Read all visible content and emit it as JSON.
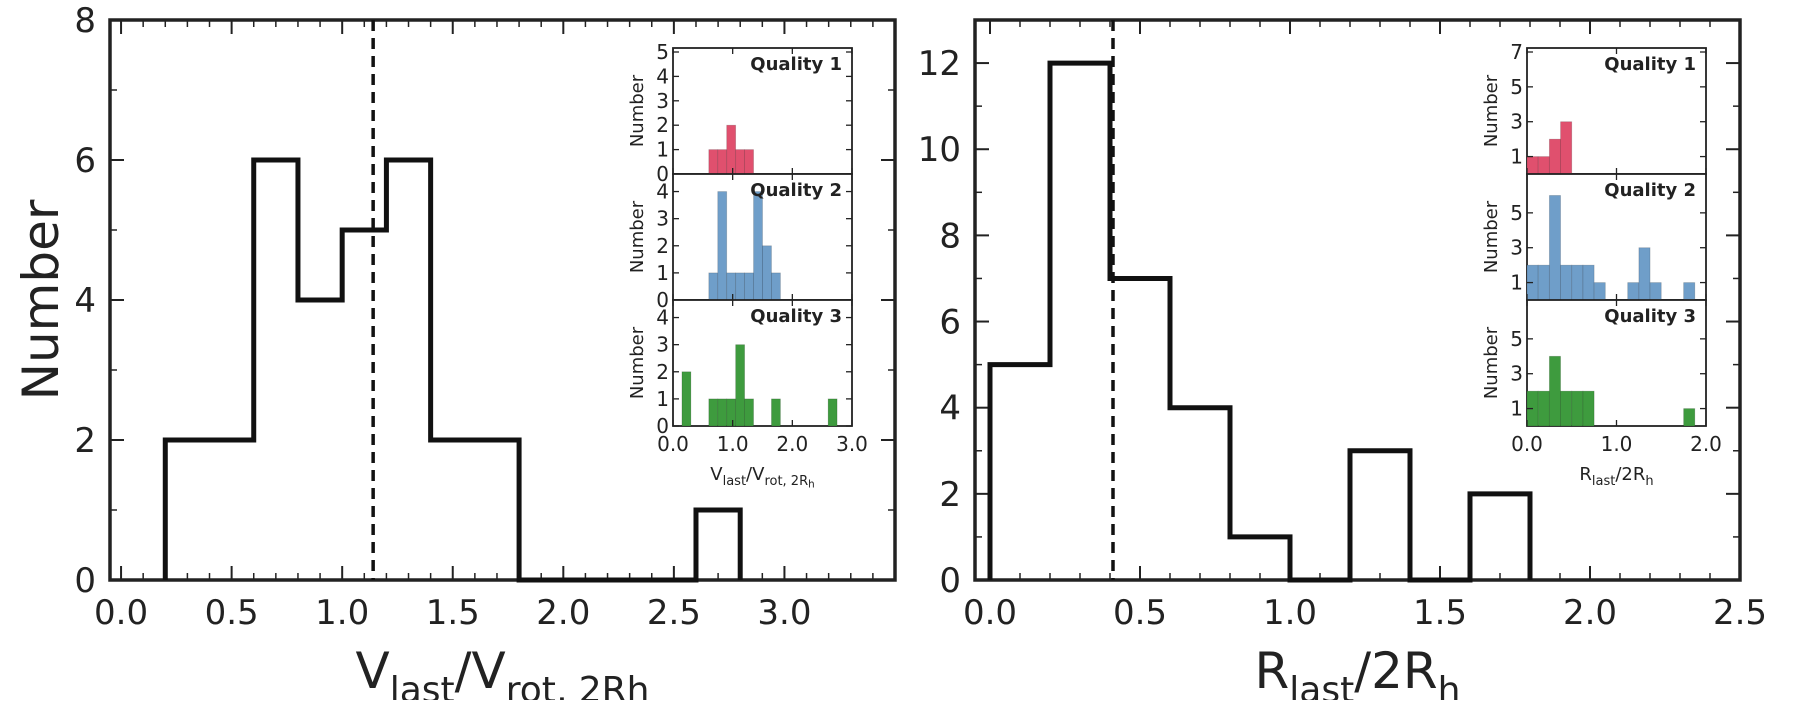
{
  "chart_data": [
    {
      "type": "histogram",
      "ylabel": "Number",
      "xlabel": "V_last/V_rot, 2Rh",
      "xlabel_parts": {
        "a": "V",
        "a_sub": "last",
        "b": "/V",
        "b_sub": "rot, 2Rh"
      },
      "xlim": [
        -0.05,
        3.5
      ],
      "ylim": [
        0,
        8
      ],
      "xticks": [
        0.0,
        0.5,
        1.0,
        1.5,
        2.0,
        2.5,
        3.0
      ],
      "xtick_labels": [
        "0.0",
        "0.5",
        "1.0",
        "1.5",
        "2.0",
        "2.5",
        "3.0"
      ],
      "yticks": [
        0,
        2,
        4,
        6,
        8
      ],
      "ytick_labels": [
        "0",
        "2",
        "4",
        "6",
        "8"
      ],
      "bin_edges": [
        0.2,
        0.4,
        0.6,
        0.8,
        1.0,
        1.2,
        1.4,
        1.6,
        1.8,
        2.0,
        2.2,
        2.4,
        2.6,
        2.8
      ],
      "counts": [
        2,
        2,
        6,
        4,
        5,
        6,
        2,
        2,
        0,
        0,
        0,
        0,
        1
      ],
      "median_line": 1.14,
      "inset": {
        "xlabel": "V_last/V_rot, 2Rh",
        "xlabel_parts": {
          "a": "V",
          "a_sub": "last",
          "b": "/V",
          "b_sub": "rot, 2R",
          "b_subsub": "h"
        },
        "ylabel": "Number",
        "xlim": [
          0,
          3.0
        ],
        "xticks": [
          0.0,
          1.0,
          2.0,
          3.0
        ],
        "xtick_labels": [
          "0.0",
          "1.0",
          "2.0",
          "3.0"
        ],
        "bin_width": 0.15,
        "panels": [
          {
            "label": "Quality 1",
            "color": "#e0506e",
            "ylim": [
              0,
              5
            ],
            "yticks": [
              0,
              1,
              2,
              3,
              4,
              5
            ],
            "ytick_labels": [
              "0",
              "1",
              "2",
              "3",
              "4",
              "5"
            ],
            "bins": [
              [
                0.6,
                1
              ],
              [
                0.75,
                1
              ],
              [
                0.9,
                2
              ],
              [
                1.05,
                1
              ],
              [
                1.2,
                1
              ]
            ]
          },
          {
            "label": "Quality 2",
            "color": "#6f9ec9",
            "ylim": [
              0,
              4.5
            ],
            "yticks": [
              0,
              1,
              2,
              3,
              4
            ],
            "ytick_labels": [
              "0",
              "1",
              "2",
              "3",
              "4"
            ],
            "bins": [
              [
                0.6,
                1
              ],
              [
                0.75,
                4
              ],
              [
                0.9,
                1
              ],
              [
                1.05,
                1
              ],
              [
                1.2,
                1
              ],
              [
                1.35,
                4
              ],
              [
                1.5,
                2
              ],
              [
                1.65,
                1
              ]
            ]
          },
          {
            "label": "Quality 3",
            "color": "#3e9b3e",
            "ylim": [
              0,
              4.5
            ],
            "yticks": [
              0,
              1,
              2,
              3,
              4
            ],
            "ytick_labels": [
              "0",
              "1",
              "2",
              "3",
              "4"
            ],
            "bins": [
              [
                0.15,
                2
              ],
              [
                0.6,
                1
              ],
              [
                0.75,
                1
              ],
              [
                0.9,
                1
              ],
              [
                1.05,
                3
              ],
              [
                1.2,
                1
              ],
              [
                1.65,
                1
              ],
              [
                2.6,
                1
              ]
            ]
          }
        ]
      }
    },
    {
      "type": "histogram",
      "ylabel": "",
      "xlabel": "R_last/2R_h",
      "xlabel_parts": {
        "a": "R",
        "a_sub": "last",
        "b": "/2R",
        "b_sub": "h"
      },
      "xlim": [
        -0.05,
        2.5
      ],
      "ylim": [
        0,
        13
      ],
      "xticks": [
        0.0,
        0.5,
        1.0,
        1.5,
        2.0,
        2.5
      ],
      "xtick_labels": [
        "0.0",
        "0.5",
        "1.0",
        "1.5",
        "2.0",
        "2.5"
      ],
      "yticks": [
        0,
        2,
        4,
        6,
        8,
        10,
        12
      ],
      "ytick_labels": [
        "0",
        "2",
        "4",
        "6",
        "8",
        "10",
        "12"
      ],
      "bin_edges": [
        0.0,
        0.2,
        0.4,
        0.6,
        0.8,
        1.0,
        1.2,
        1.4,
        1.6,
        1.8
      ],
      "counts": [
        5,
        12,
        7,
        4,
        1,
        0,
        3,
        0,
        2
      ],
      "median_line": 0.41,
      "inset": {
        "xlabel": "R_last/2R_h",
        "xlabel_parts": {
          "a": "R",
          "a_sub": "last",
          "b": "/2R",
          "b_sub": "h"
        },
        "ylabel": "Number",
        "xlim": [
          0,
          2.0
        ],
        "xticks": [
          0.0,
          1.0,
          2.0
        ],
        "xtick_labels": [
          "0.0",
          "1.0",
          "2.0"
        ],
        "bin_width": 0.125,
        "panels": [
          {
            "label": "Quality 1",
            "color": "#e0506e",
            "ylim": [
              0,
              7
            ],
            "yticks": [
              1,
              3,
              5,
              7
            ],
            "ytick_labels": [
              "1",
              "3",
              "5",
              "7"
            ],
            "bins": [
              [
                0.0,
                1
              ],
              [
                0.125,
                1
              ],
              [
                0.25,
                2
              ],
              [
                0.375,
                3
              ]
            ]
          },
          {
            "label": "Quality 2",
            "color": "#6f9ec9",
            "ylim": [
              0,
              7
            ],
            "yticks": [
              1,
              3,
              5
            ],
            "ytick_labels": [
              "1",
              "3",
              "5"
            ],
            "bins": [
              [
                0.0,
                2
              ],
              [
                0.125,
                2
              ],
              [
                0.25,
                6
              ],
              [
                0.375,
                2
              ],
              [
                0.5,
                2
              ],
              [
                0.625,
                2
              ],
              [
                0.75,
                1
              ],
              [
                1.125,
                1
              ],
              [
                1.25,
                3
              ],
              [
                1.375,
                1
              ],
              [
                1.75,
                1
              ]
            ]
          },
          {
            "label": "Quality 3",
            "color": "#3e9b3e",
            "ylim": [
              0,
              7
            ],
            "yticks": [
              1,
              3,
              5
            ],
            "ytick_labels": [
              "1",
              "3",
              "5"
            ],
            "bins": [
              [
                0.0,
                2
              ],
              [
                0.125,
                2
              ],
              [
                0.25,
                4
              ],
              [
                0.375,
                2
              ],
              [
                0.5,
                2
              ],
              [
                0.625,
                2
              ],
              [
                1.75,
                1
              ]
            ]
          }
        ]
      }
    }
  ]
}
